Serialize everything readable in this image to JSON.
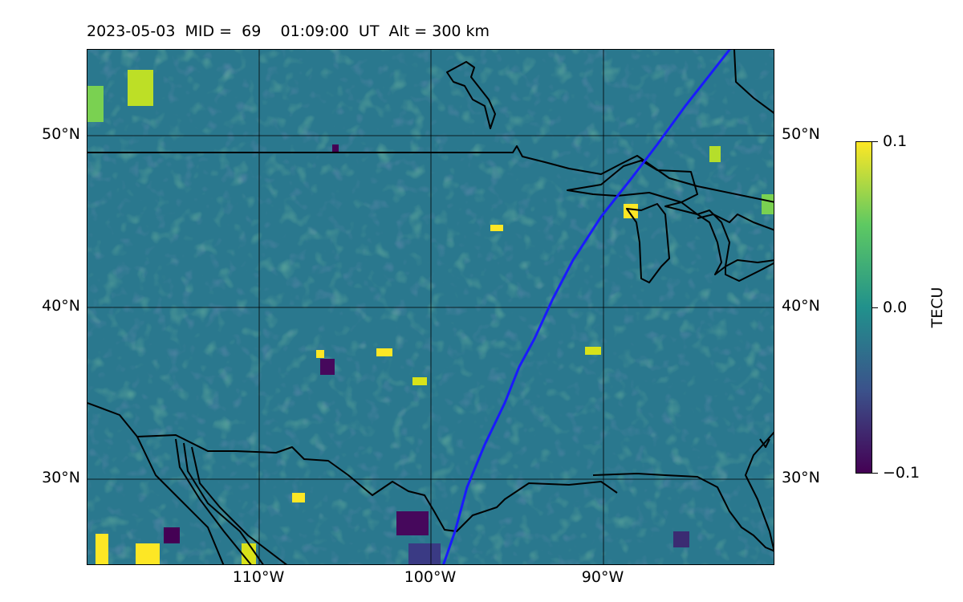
{
  "title": "2023-05-03  MID =  69    01:09:00  UT  Alt = 300 km",
  "map": {
    "lon_range": [
      -120,
      -80
    ],
    "lat_range": [
      25,
      55
    ],
    "gridlines": true,
    "lat_ticks": [
      "30°N",
      "40°N",
      "50°N"
    ],
    "lon_ticks": [
      "110°W",
      "100°W",
      "90°W"
    ],
    "field": "TEC perturbation (viridis colormap)",
    "satellite_track": {
      "color": "#1a1aff"
    }
  },
  "colorbar": {
    "label": "TECU",
    "ticks": [
      "0.1",
      "0.0",
      "−0.1"
    ],
    "range": [
      -0.1,
      0.1
    ],
    "colormap": [
      "#440154",
      "#3b528b",
      "#21918c",
      "#5ec962",
      "#fde725"
    ]
  }
}
